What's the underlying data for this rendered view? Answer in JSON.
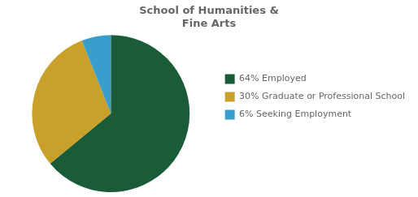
{
  "chart_data": {
    "type": "pie",
    "title": "School of Humanities &\nFine Arts",
    "categories": [
      "64% Employed",
      "30% Graduate or Professional School",
      "6% Seeking Employment"
    ],
    "values": [
      64,
      30,
      6
    ],
    "colors": [
      "#1a5c38",
      "#c9a02a",
      "#3a9ecd"
    ],
    "legend": "right"
  }
}
